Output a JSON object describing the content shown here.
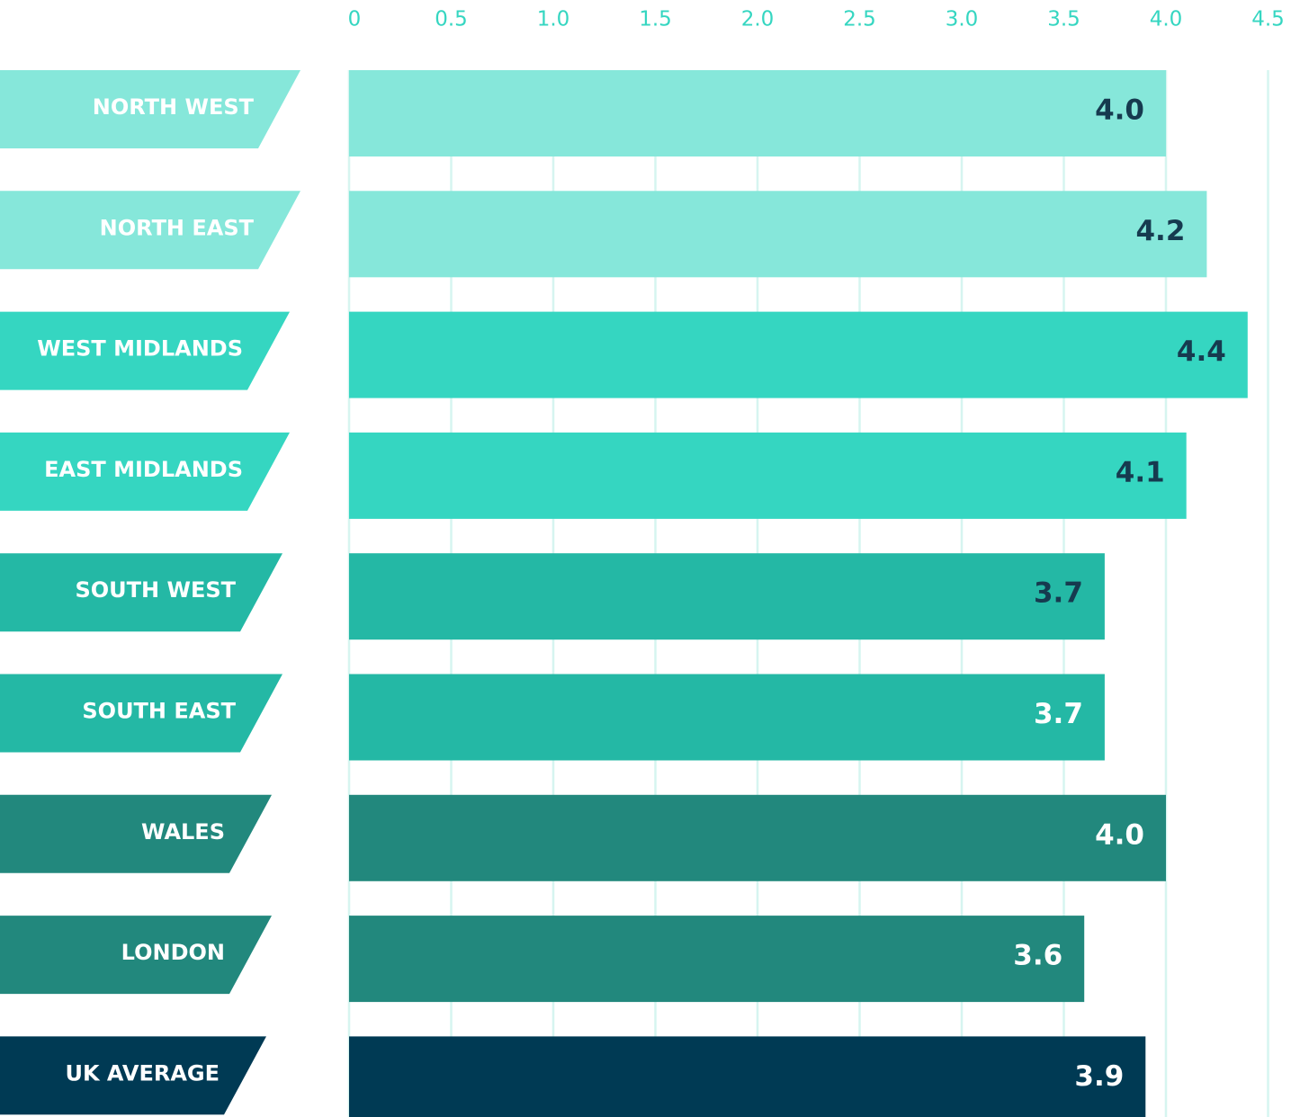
{
  "chart_data": {
    "type": "barh",
    "categories": [
      "NORTH WEST",
      "NORTH EAST",
      "WEST MIDLANDS",
      "EAST MIDLANDS",
      "SOUTH WEST",
      "SOUTH EAST",
      "WALES",
      "LONDON",
      "UK AVERAGE"
    ],
    "values": [
      4.0,
      4.2,
      4.4,
      4.1,
      3.7,
      3.7,
      4.0,
      3.6,
      3.9
    ],
    "value_labels": [
      "4.0",
      "4.2",
      "4.4",
      "4.1",
      "3.7",
      "3.7",
      "4.0",
      "3.6",
      "3.9"
    ],
    "colors": [
      "#86e7da",
      "#86e7da",
      "#35d6c1",
      "#35d6c1",
      "#24b8a5",
      "#24b8a5",
      "#22887d",
      "#22887d",
      "#003a54"
    ],
    "value_label_colors": [
      "#163a4f",
      "#163a4f",
      "#163a4f",
      "#163a4f",
      "#163a4f",
      "#ffffff",
      "#ffffff",
      "#ffffff",
      "#ffffff"
    ],
    "xlim": [
      0,
      4.5
    ],
    "xticks": [
      0,
      0.5,
      {
        "value": 1,
        "label": "1.0"
      },
      1.5,
      {
        "value": 2,
        "label": "2.0"
      },
      2.5,
      {
        "value": 3,
        "label": "3.0"
      },
      3.5,
      {
        "value": 4,
        "label": "4.0"
      },
      4.5
    ],
    "grid": true
  }
}
